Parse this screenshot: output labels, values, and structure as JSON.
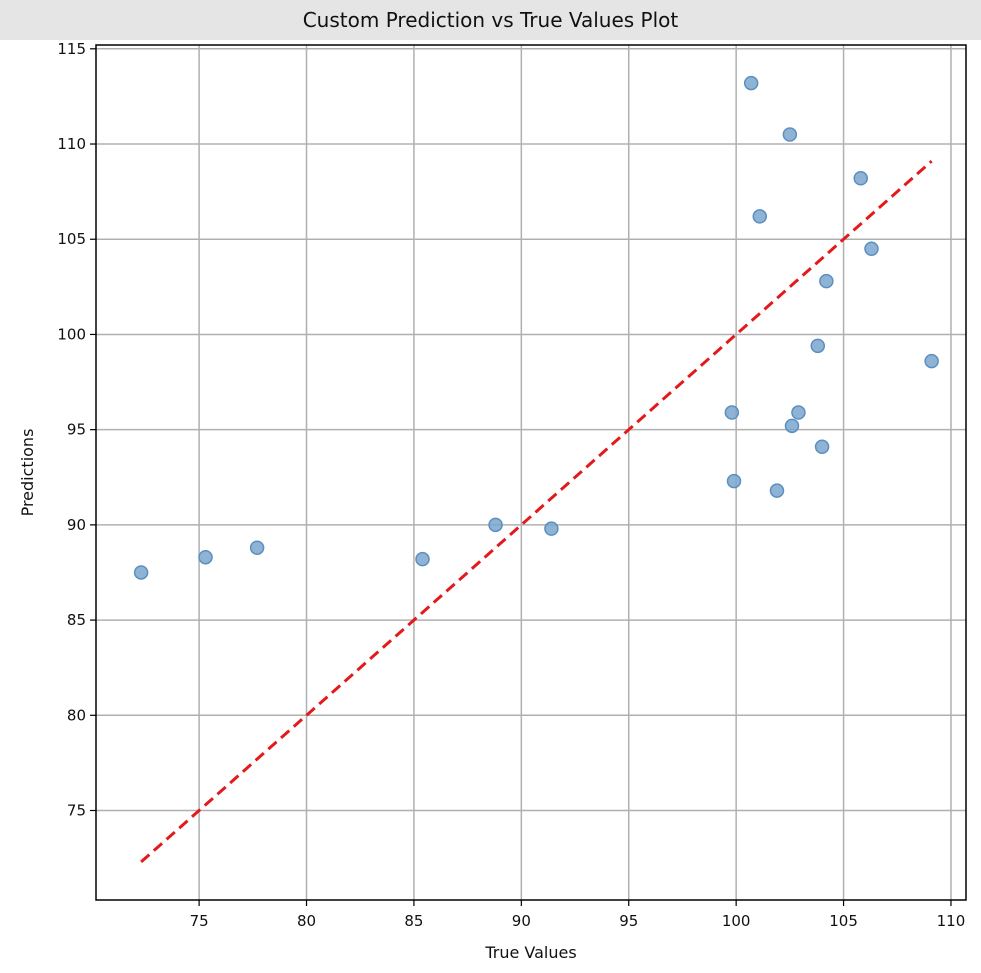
{
  "window": {
    "title": "Custom Prediction vs True Values Plot"
  },
  "chart_data": {
    "type": "scatter",
    "title": "Custom Prediction vs True Values Plot",
    "xlabel": "True Values",
    "ylabel": "Predictions",
    "xlim": [
      70.2,
      110.7
    ],
    "ylim": [
      70.3,
      115.2
    ],
    "x_ticks": [
      75,
      80,
      85,
      90,
      95,
      100,
      105,
      110
    ],
    "y_ticks": [
      75,
      80,
      85,
      90,
      95,
      100,
      105,
      110,
      115
    ],
    "grid": true,
    "series": [
      {
        "color": "#7aa6cc",
        "points": [
          {
            "x": 72.3,
            "y": 87.5
          },
          {
            "x": 75.3,
            "y": 88.3
          },
          {
            "x": 77.7,
            "y": 88.8
          },
          {
            "x": 85.4,
            "y": 88.2
          },
          {
            "x": 88.8,
            "y": 90.0
          },
          {
            "x": 91.4,
            "y": 89.8
          },
          {
            "x": 99.8,
            "y": 95.9
          },
          {
            "x": 99.9,
            "y": 92.3
          },
          {
            "x": 100.7,
            "y": 113.2
          },
          {
            "x": 101.1,
            "y": 106.2
          },
          {
            "x": 101.9,
            "y": 91.8
          },
          {
            "x": 102.5,
            "y": 110.5
          },
          {
            "x": 102.6,
            "y": 95.2
          },
          {
            "x": 102.9,
            "y": 95.9
          },
          {
            "x": 103.8,
            "y": 99.4
          },
          {
            "x": 104.0,
            "y": 94.1
          },
          {
            "x": 104.2,
            "y": 102.8
          },
          {
            "x": 105.8,
            "y": 108.2
          },
          {
            "x": 106.3,
            "y": 104.5
          },
          {
            "x": 109.1,
            "y": 98.6
          }
        ]
      }
    ],
    "reference_line": {
      "style": "dashed",
      "color": "#e31a1c",
      "from": {
        "x": 72.3,
        "y": 72.3
      },
      "to": {
        "x": 109.1,
        "y": 109.1
      }
    }
  }
}
